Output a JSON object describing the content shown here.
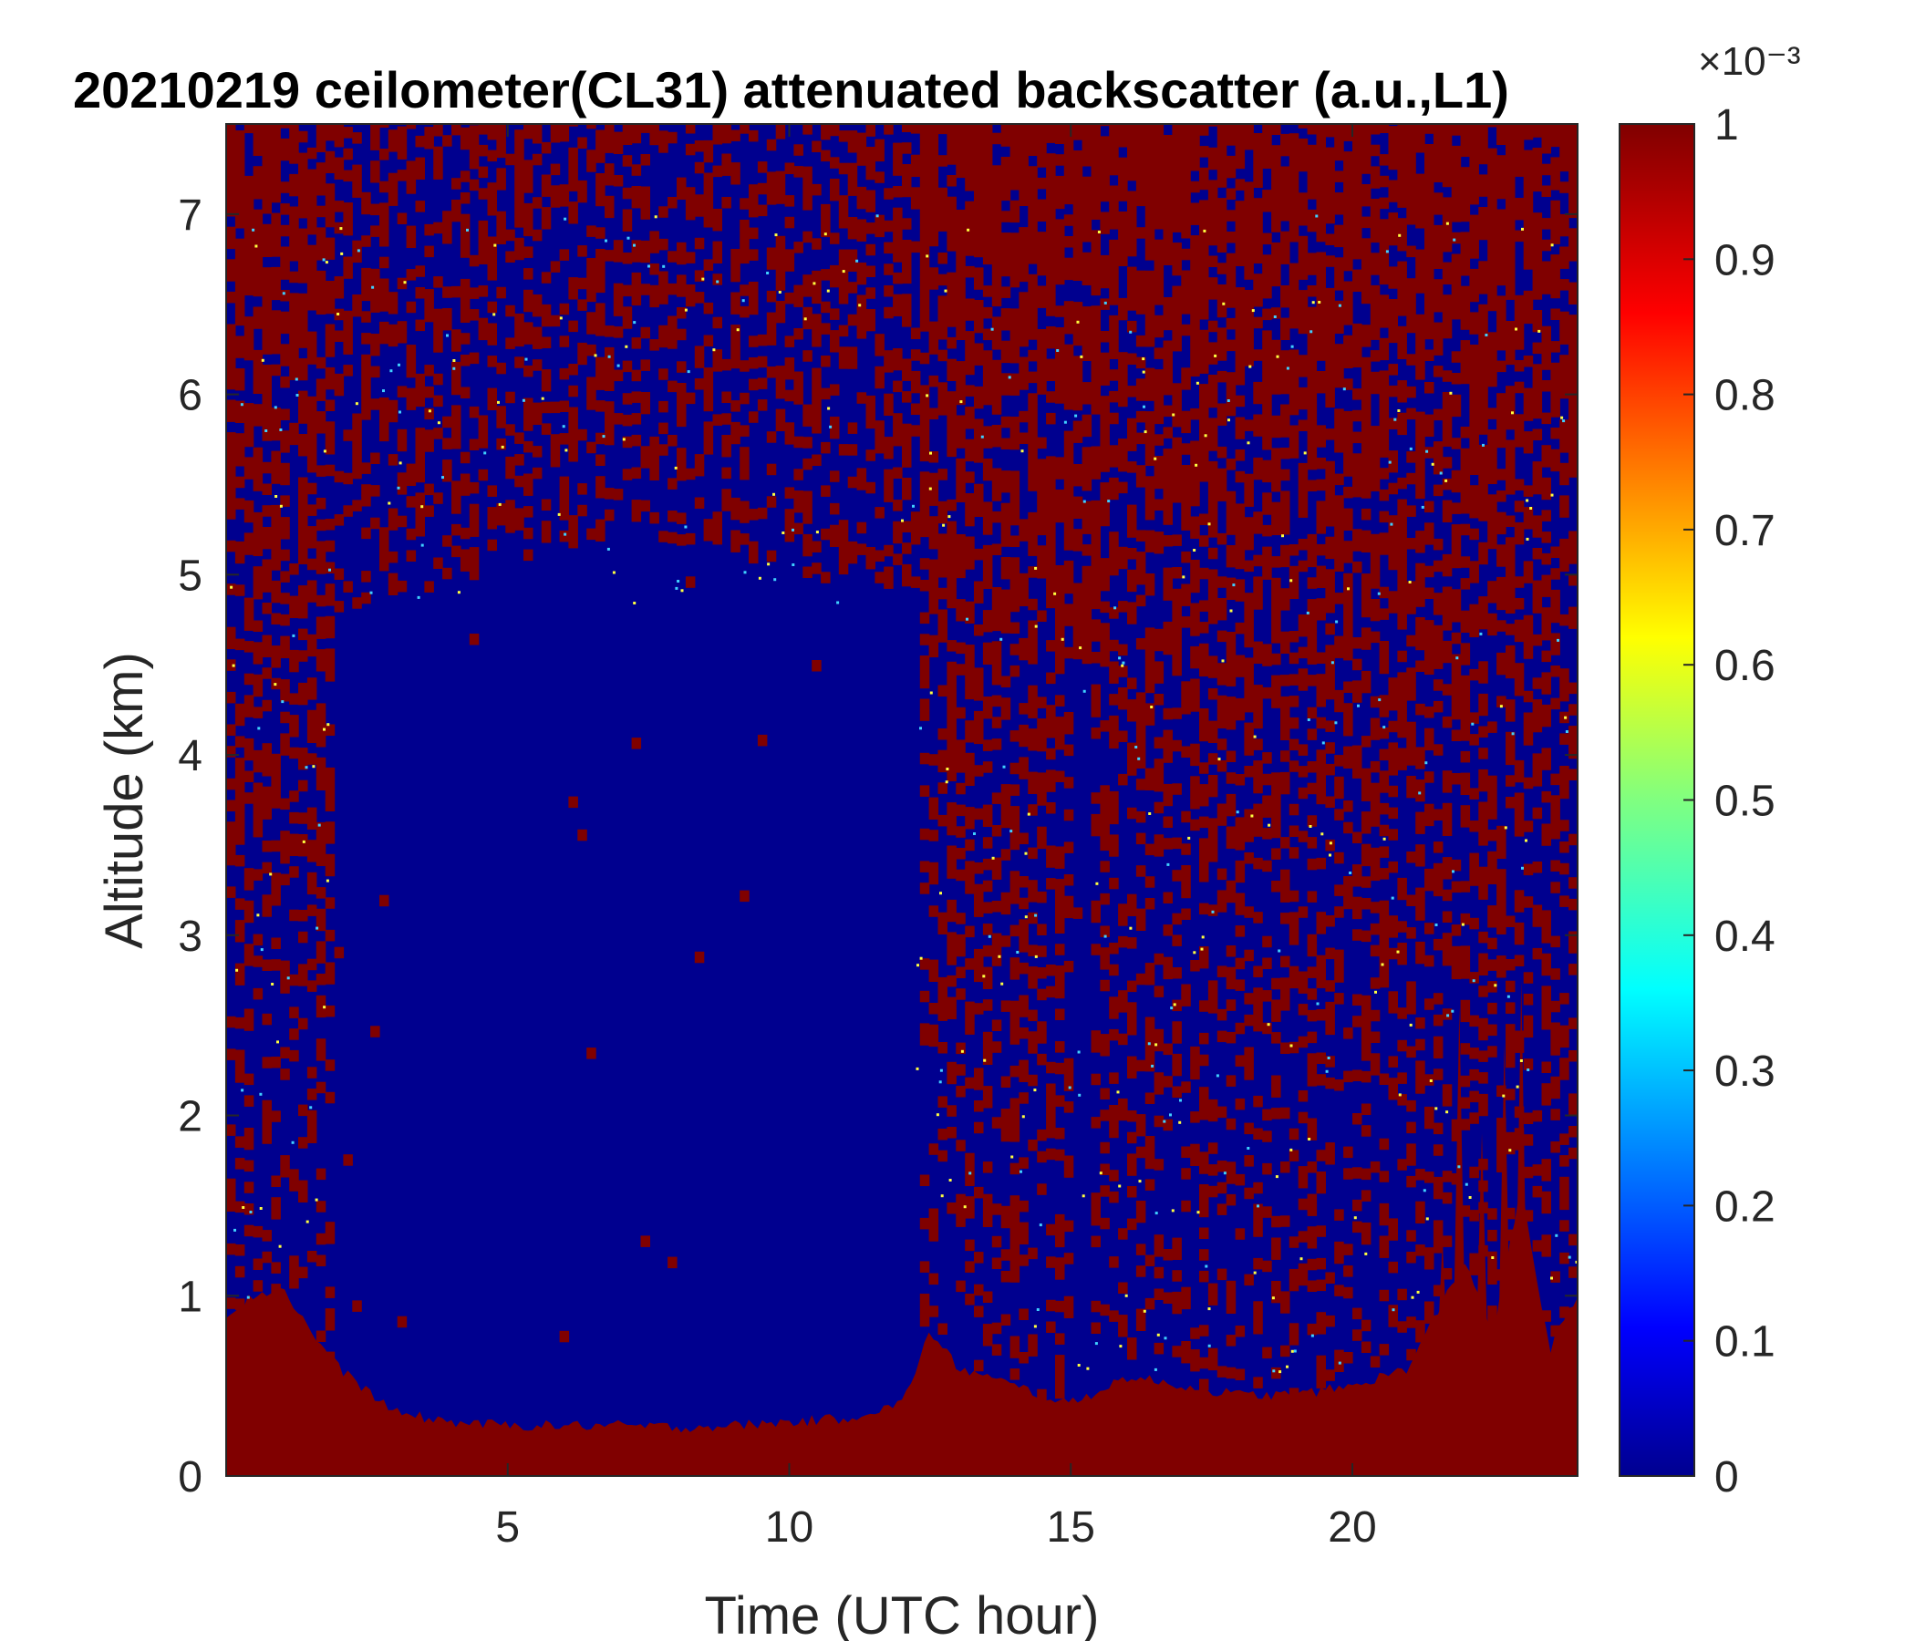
{
  "chart_data": {
    "type": "heatmap",
    "title": "20210219 ceilometer(CL31) attenuated backscatter (a.u.,L1)",
    "xlabel": "Time (UTC hour)",
    "ylabel": "Altitude (km)",
    "xlim": [
      0,
      24
    ],
    "ylim": [
      0,
      7.5
    ],
    "x_ticks": [
      5,
      10,
      15,
      20
    ],
    "y_ticks": [
      0,
      1,
      2,
      3,
      4,
      5,
      6,
      7
    ],
    "colorbar": {
      "label": "",
      "exponent": "×10⁻³",
      "range": [
        0,
        1
      ],
      "ticks": [
        0,
        0.1,
        0.2,
        0.3,
        0.4,
        0.5,
        0.6,
        0.7,
        0.8,
        0.9,
        1
      ],
      "colormap": "jet",
      "min_color": "#00008f",
      "max_color": "#800000"
    },
    "features": {
      "boundary_layer_top_km": {
        "time_hours": [
          0,
          0.5,
          1.0,
          1.5,
          2,
          3,
          4,
          5,
          6,
          7,
          8,
          9,
          10,
          11,
          12,
          12.5,
          13,
          14,
          15,
          16,
          17,
          18,
          19,
          20,
          21,
          22,
          22.5,
          23,
          23.5,
          24
        ],
        "altitude_km": [
          0.9,
          1.0,
          1.05,
          0.8,
          0.6,
          0.35,
          0.3,
          0.28,
          0.28,
          0.28,
          0.27,
          0.28,
          0.3,
          0.32,
          0.4,
          0.8,
          0.6,
          0.5,
          0.4,
          0.55,
          0.5,
          0.45,
          0.45,
          0.5,
          0.6,
          1.2,
          0.8,
          1.6,
          0.7,
          1.0
        ]
      },
      "clear_region": {
        "time_hours": [
          1.8,
          12.2
        ],
        "altitude_km": [
          0.35,
          5.2
        ]
      },
      "noisy_upper_region_start_km": 5.0
    }
  }
}
